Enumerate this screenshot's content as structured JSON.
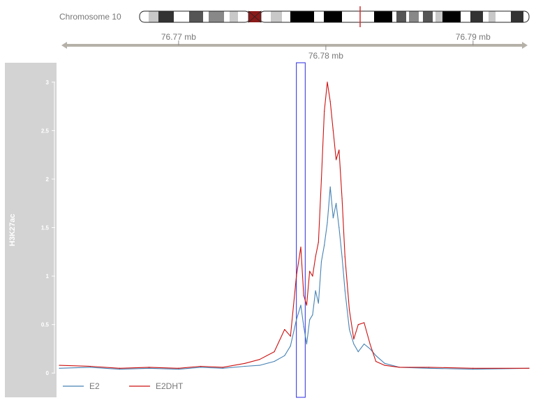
{
  "ideogram": {
    "label": "Chromosome 10",
    "highlight_color": "#d62c2c"
  },
  "genome_axis": {
    "ticks": [
      {
        "label": "76.77 mb",
        "pos_mb": 76.77
      },
      {
        "label": "76.78 mb",
        "pos_mb": 76.78
      },
      {
        "label": "76.79 mb",
        "pos_mb": 76.79
      }
    ],
    "range_mb": [
      76.7619,
      76.7938
    ],
    "color": "#b5b0a8"
  },
  "track": {
    "title": "H3K27ac",
    "title_bg": "#d3d3d3",
    "highlight_box": {
      "start_mb": 76.778,
      "end_mb": 76.7786,
      "color": "#2a2ae0"
    }
  },
  "chart_data": {
    "type": "line",
    "ylabel": "H3K27ac",
    "ylim": [
      -0.25,
      3.2
    ],
    "yticks": [
      {
        "label": "0",
        "value": 0
      },
      {
        "label": "0.5",
        "value": 0.5
      },
      {
        "label": "1",
        "value": 1
      },
      {
        "label": "1.5",
        "value": 1.5
      },
      {
        "label": "2",
        "value": 2
      },
      {
        "label": "2.5",
        "value": 2.5
      },
      {
        "label": "3",
        "value": 3
      }
    ],
    "x_unit": "mb",
    "grid": false,
    "legend_position": "bottom-left",
    "series": [
      {
        "name": "E2",
        "color": "#4682b4",
        "x": [
          76.7619,
          76.764,
          76.766,
          76.768,
          76.77,
          76.7715,
          76.773,
          76.7745,
          76.7755,
          76.7765,
          76.7772,
          76.7776,
          76.778,
          76.7783,
          76.7785,
          76.7787,
          76.7789,
          76.7791,
          76.7793,
          76.7795,
          76.7797,
          76.7799,
          76.7801,
          76.7803,
          76.7805,
          76.7807,
          76.7809,
          76.7811,
          76.7813,
          76.7816,
          76.7819,
          76.7822,
          76.7826,
          76.783,
          76.7834,
          76.784,
          76.785,
          76.787,
          76.79,
          76.7938
        ],
        "y": [
          0.05,
          0.06,
          0.04,
          0.05,
          0.04,
          0.06,
          0.05,
          0.07,
          0.08,
          0.12,
          0.18,
          0.28,
          0.55,
          0.7,
          0.48,
          0.3,
          0.55,
          0.6,
          0.85,
          0.72,
          1.15,
          1.32,
          1.55,
          1.92,
          1.6,
          1.75,
          1.5,
          1.2,
          0.85,
          0.45,
          0.3,
          0.22,
          0.3,
          0.25,
          0.18,
          0.1,
          0.06,
          0.05,
          0.04,
          0.05
        ]
      },
      {
        "name": "E2DHT",
        "color": "#cc1010",
        "x": [
          76.7619,
          76.764,
          76.766,
          76.768,
          76.77,
          76.7715,
          76.773,
          76.7745,
          76.7755,
          76.7765,
          76.7772,
          76.7776,
          76.778,
          76.7783,
          76.7785,
          76.7787,
          76.7789,
          76.7791,
          76.7793,
          76.7795,
          76.7797,
          76.7799,
          76.7801,
          76.7803,
          76.7805,
          76.7807,
          76.7809,
          76.7811,
          76.7813,
          76.7816,
          76.7819,
          76.7822,
          76.7826,
          76.783,
          76.7834,
          76.784,
          76.785,
          76.787,
          76.79,
          76.7938
        ],
        "y": [
          0.08,
          0.07,
          0.05,
          0.06,
          0.05,
          0.07,
          0.06,
          0.1,
          0.14,
          0.22,
          0.45,
          0.38,
          1.0,
          1.3,
          0.8,
          0.7,
          1.05,
          1.0,
          1.2,
          1.35,
          2.0,
          2.7,
          3.0,
          2.8,
          2.5,
          2.2,
          2.3,
          1.8,
          1.2,
          0.65,
          0.35,
          0.5,
          0.52,
          0.3,
          0.12,
          0.08,
          0.06,
          0.06,
          0.05,
          0.05
        ]
      }
    ]
  }
}
